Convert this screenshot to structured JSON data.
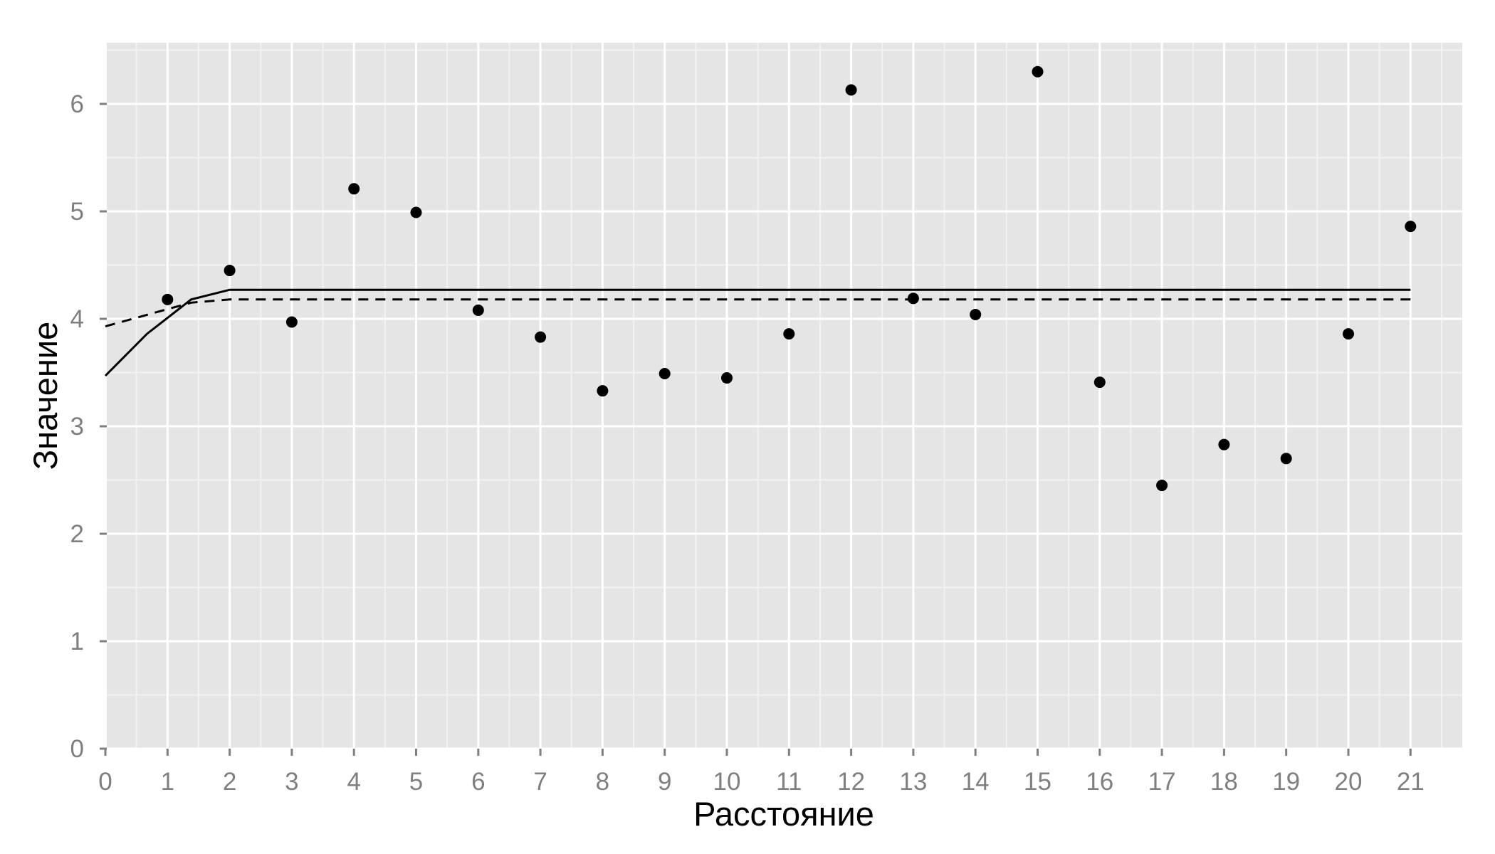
{
  "chart_data": {
    "type": "scatter",
    "title": "",
    "xlabel": "Расстояние",
    "ylabel": "Значение",
    "xlim": [
      0,
      21.8
    ],
    "ylim": [
      0,
      6.55
    ],
    "x_ticks": [
      "0",
      "1",
      "2",
      "3",
      "4",
      "5",
      "6",
      "7",
      "8",
      "9",
      "10",
      "11",
      "12",
      "13",
      "14",
      "15",
      "16",
      "17",
      "18",
      "19",
      "20",
      "21"
    ],
    "y_ticks": [
      "0",
      "1",
      "2",
      "3",
      "4",
      "5",
      "6"
    ],
    "grid": true,
    "legend": "none",
    "colors": {
      "panel": "#e5e5e5",
      "grid_major": "#ffffff",
      "grid_minor": "#f2f2f2",
      "marks": "#000000"
    },
    "points": {
      "x": [
        1,
        2,
        3,
        4,
        5,
        6,
        7,
        8,
        9,
        10,
        11,
        12,
        13,
        14,
        15,
        16,
        17,
        18,
        19,
        20,
        21
      ],
      "y": [
        4.18,
        4.45,
        3.97,
        5.21,
        4.99,
        4.08,
        3.83,
        3.33,
        3.49,
        3.45,
        3.86,
        6.13,
        4.19,
        4.04,
        6.3,
        3.41,
        2.45,
        2.83,
        2.7,
        3.86,
        4.86
      ]
    },
    "lines": [
      {
        "style": "solid",
        "x": [
          0,
          0.67,
          1.38,
          2,
          21
        ],
        "y": [
          3.47,
          3.86,
          4.18,
          4.27,
          4.27
        ]
      },
      {
        "style": "dashed",
        "x": [
          0,
          1,
          1.38,
          2,
          21
        ],
        "y": [
          3.93,
          4.09,
          4.15,
          4.18,
          4.18
        ]
      }
    ]
  }
}
